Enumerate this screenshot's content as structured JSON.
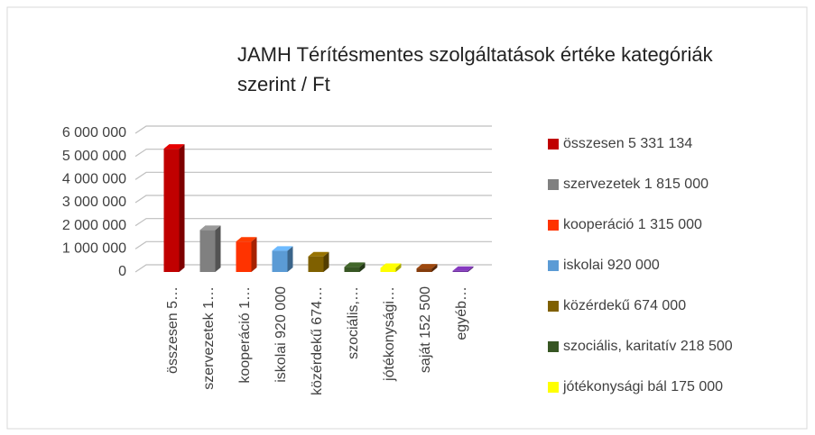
{
  "chart_data": {
    "type": "bar3d",
    "title": "JAMH Térítésmentes szolgáltatások értéke kategóriák szerint / Ft",
    "categories": [
      "összesen 5…",
      "szervezetek 1…",
      "kooperáció 1…",
      "iskolai 920 000",
      "közérdekű 674…",
      "szociális,…",
      "jótékonysági…",
      "saját 152 500",
      "egyéb…"
    ],
    "values": [
      5331134,
      1815000,
      1315000,
      920000,
      674000,
      218500,
      175000,
      152500,
      50000
    ],
    "colors": [
      "#c00000",
      "#808080",
      "#ff3300",
      "#5b9bd5",
      "#7f6000",
      "#375623",
      "#ffff00",
      "#843c0c",
      "#7030a0"
    ],
    "legend": [
      "összesen 5 331 134",
      "szervezetek 1 815 000",
      "kooperáció 1 315 000",
      "iskolai 920 000",
      "közérdekű 674 000",
      "szociális, karitatív 218 500",
      "jótékonysági bál 175 000"
    ],
    "ylim": [
      0,
      6000000
    ],
    "yticks": [
      0,
      {
        "value": 1000000,
        "label": "1 000 000"
      },
      {
        "value": 2000000,
        "label": "2 000 000"
      },
      {
        "value": 3000000,
        "label": "3 000 000"
      },
      {
        "value": 4000000,
        "label": "4 000 000"
      },
      {
        "value": 5000000,
        "label": "5 000 000"
      },
      {
        "value": 6000000,
        "label": "6 000 000"
      }
    ],
    "grid": true
  }
}
